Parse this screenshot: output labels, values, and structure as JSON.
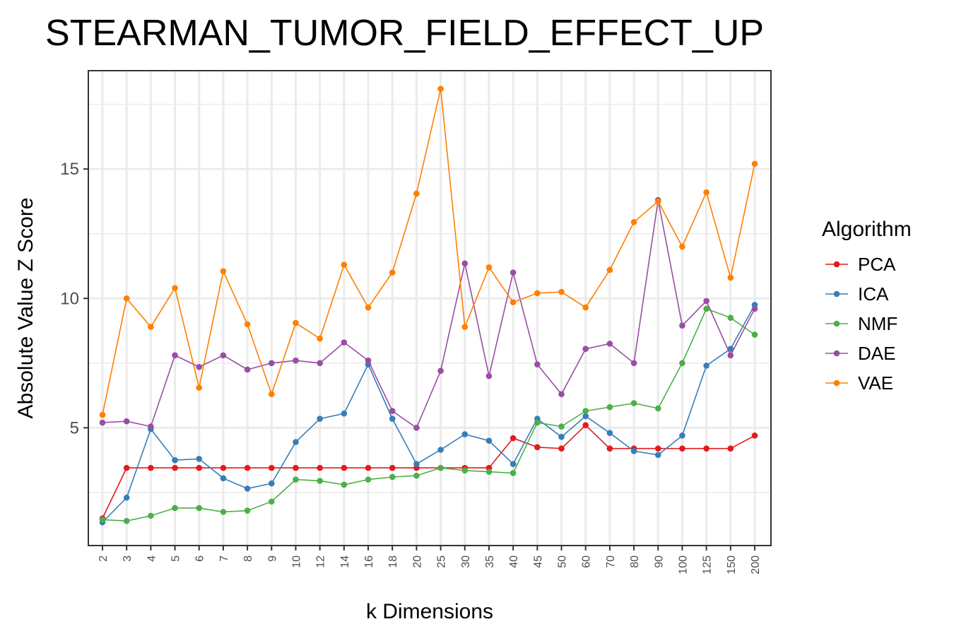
{
  "chart_data": {
    "type": "line",
    "title": "STEARMAN_TUMOR_FIELD_EFFECT_UP",
    "xlabel": "k Dimensions",
    "ylabel": "Absolute Value Z Score",
    "categories": [
      "2",
      "3",
      "4",
      "5",
      "6",
      "7",
      "8",
      "9",
      "10",
      "12",
      "14",
      "16",
      "18",
      "20",
      "25",
      "30",
      "35",
      "40",
      "45",
      "50",
      "60",
      "70",
      "80",
      "90",
      "100",
      "125",
      "150",
      "200"
    ],
    "yticks": [
      5,
      10,
      15
    ],
    "ylim": [
      0.45,
      18.8
    ],
    "grid": true,
    "legend": {
      "title": "Algorithm",
      "position": "right"
    },
    "series": [
      {
        "name": "PCA",
        "color": "#e41a1c",
        "values": [
          1.5,
          3.45,
          3.45,
          3.45,
          3.45,
          3.45,
          3.45,
          3.45,
          3.45,
          3.45,
          3.45,
          3.45,
          3.45,
          3.45,
          3.45,
          3.45,
          3.45,
          4.6,
          4.25,
          4.2,
          5.1,
          4.2,
          4.2,
          4.2,
          4.2,
          4.2,
          4.2,
          4.7
        ]
      },
      {
        "name": "ICA",
        "color": "#377eb8",
        "values": [
          1.35,
          2.3,
          4.95,
          3.75,
          3.8,
          3.05,
          2.65,
          2.85,
          4.45,
          5.35,
          5.55,
          7.45,
          5.35,
          3.6,
          4.15,
          4.75,
          4.5,
          3.6,
          5.35,
          4.65,
          5.45,
          4.8,
          4.1,
          3.95,
          4.7,
          7.4,
          8.05,
          9.75
        ]
      },
      {
        "name": "NMF",
        "color": "#4daf4a",
        "values": [
          1.45,
          1.4,
          1.6,
          1.9,
          1.9,
          1.75,
          1.8,
          2.15,
          3.0,
          2.95,
          2.8,
          3.0,
          3.1,
          3.15,
          3.45,
          3.35,
          3.3,
          3.25,
          5.2,
          5.05,
          5.65,
          5.8,
          5.95,
          5.75,
          7.5,
          9.6,
          9.25,
          8.6
        ]
      },
      {
        "name": "DAE",
        "color": "#984ea3",
        "values": [
          5.2,
          5.25,
          5.05,
          7.8,
          7.35,
          7.8,
          7.25,
          7.5,
          7.6,
          7.5,
          8.3,
          7.6,
          5.65,
          5.0,
          7.2,
          11.35,
          7.0,
          11.0,
          7.45,
          6.3,
          8.05,
          8.25,
          7.5,
          13.8,
          8.95,
          9.9,
          7.8,
          9.6
        ]
      },
      {
        "name": "VAE",
        "color": "#ff7f00",
        "values": [
          5.5,
          10.0,
          8.9,
          10.4,
          6.55,
          11.05,
          9.0,
          6.3,
          9.05,
          8.45,
          11.3,
          9.65,
          11.0,
          14.05,
          18.1,
          8.9,
          11.2,
          9.85,
          10.2,
          10.25,
          9.65,
          11.1,
          12.95,
          13.75,
          12.0,
          14.1,
          10.8,
          15.2
        ]
      }
    ]
  }
}
